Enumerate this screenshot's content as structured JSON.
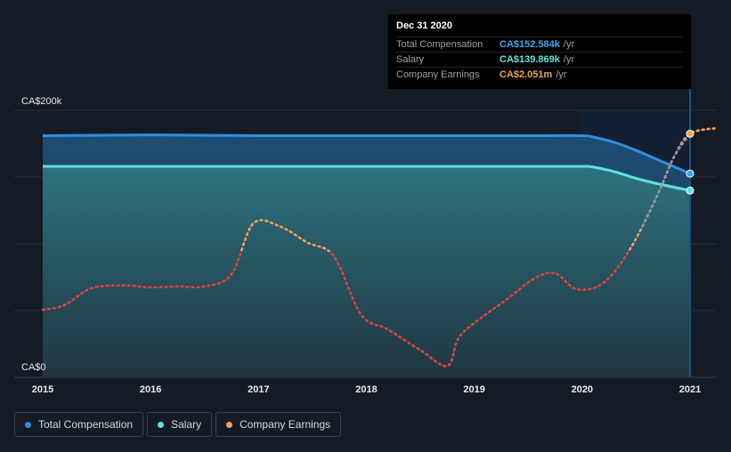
{
  "chart_data": {
    "type": "line",
    "x_ticks": [
      "2015",
      "2016",
      "2017",
      "2018",
      "2019",
      "2020",
      "2021"
    ],
    "y_ticks": [
      "CA$0",
      "CA$200k"
    ],
    "ylim": [
      0,
      200
    ],
    "grid": true,
    "legend_position": "bottom-left",
    "series": [
      {
        "name": "Total Compensation",
        "color": "#2e8ee0",
        "style": "solid-area",
        "x": [
          2015.0,
          2015.5,
          2016.0,
          2016.5,
          2017.0,
          2017.5,
          2018.0,
          2018.5,
          2019.0,
          2019.5,
          2020.0,
          2020.1,
          2020.3,
          2020.5,
          2020.7,
          2021.0
        ],
        "values": [
          181,
          181.3,
          181.6,
          181.3,
          181,
          181,
          181,
          181,
          181,
          181,
          181,
          180,
          176,
          170,
          163,
          152.6
        ]
      },
      {
        "name": "Salary",
        "color": "#62e0dc",
        "style": "solid-area",
        "x": [
          2015.0,
          2015.5,
          2016.0,
          2016.5,
          2017.0,
          2017.5,
          2018.0,
          2018.5,
          2019.0,
          2019.5,
          2020.0,
          2020.1,
          2020.3,
          2020.5,
          2020.7,
          2021.0
        ],
        "values": [
          158,
          158,
          158,
          158,
          158,
          158,
          158,
          158,
          158,
          158,
          158,
          157.5,
          154,
          149,
          145,
          139.9
        ]
      },
      {
        "name": "Company Earnings",
        "color": "#e9a55a",
        "color_negative": "#e0423f",
        "style": "dotted",
        "x": [
          2015.0,
          2015.2,
          2015.45,
          2015.75,
          2016.0,
          2016.25,
          2016.5,
          2016.75,
          2016.95,
          2017.2,
          2017.45,
          2017.7,
          2017.95,
          2018.2,
          2018.5,
          2018.75,
          2018.85,
          2019.0,
          2019.3,
          2019.55,
          2019.75,
          2019.95,
          2020.2,
          2020.45,
          2020.7,
          2020.85,
          2021.0,
          2021.25
        ],
        "values": [
          0.17,
          0.22,
          0.4,
          0.43,
          0.41,
          0.42,
          0.42,
          0.55,
          1.09,
          1.06,
          0.89,
          0.74,
          0.12,
          -0.04,
          -0.26,
          -0.43,
          -0.14,
          0.03,
          0.28,
          0.5,
          0.56,
          0.39,
          0.46,
          0.83,
          1.4,
          1.8,
          2.05,
          2.11
        ],
        "zero_value": 0.17,
        "scale_max": 2.3
      }
    ]
  },
  "tooltip": {
    "date": "Dec 31 2020",
    "rows": [
      {
        "label": "Total Compensation",
        "value": "CA$152.584k",
        "unit": "/yr",
        "color": "#3fa6ef"
      },
      {
        "label": "Salary",
        "value": "CA$139.869k",
        "unit": "/yr",
        "color": "#62e0dc"
      },
      {
        "label": "Company Earnings",
        "value": "CA$2.051m",
        "unit": "/yr",
        "color": "#e9a55a"
      }
    ]
  },
  "legend": [
    {
      "label": "Total Compensation",
      "color": "#2e8ee0"
    },
    {
      "label": "Salary",
      "color": "#62e0dc"
    },
    {
      "label": "Company Earnings",
      "color": "#e9a55a"
    }
  ]
}
